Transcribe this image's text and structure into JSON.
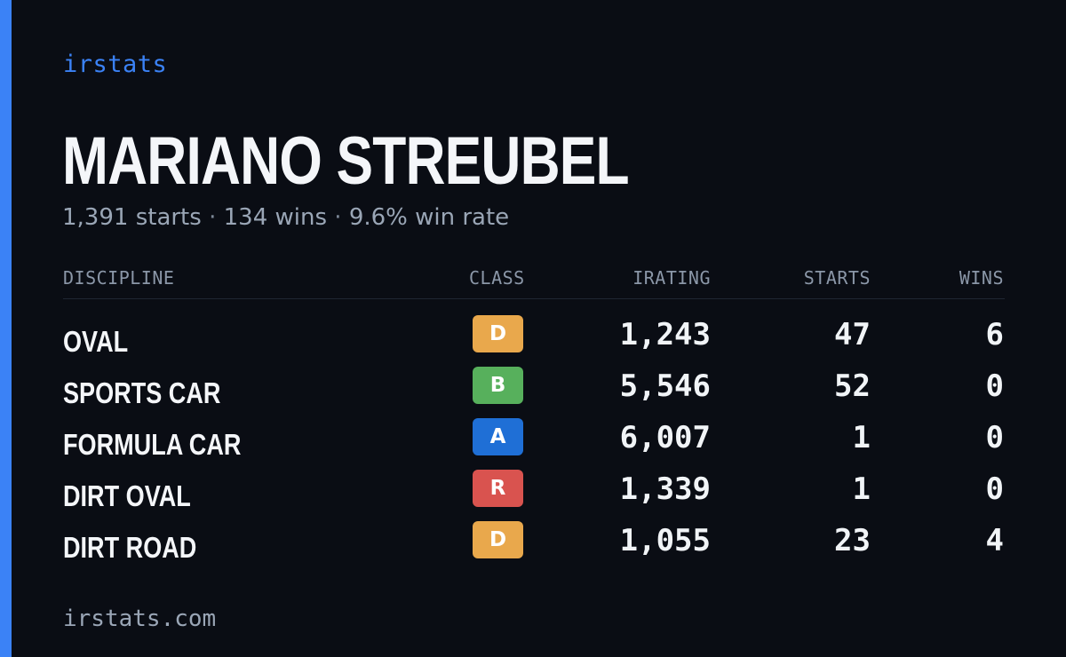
{
  "brand": {
    "name": "irstats",
    "footer_url": "irstats.com",
    "accent_color": "#3b82f6"
  },
  "profile": {
    "name": "MARIANO STREUBEL",
    "starts": "1,391 starts",
    "wins": "134 wins",
    "win_rate": "9.6% win rate",
    "separator": "·"
  },
  "table": {
    "headers": {
      "discipline": "DISCIPLINE",
      "class": "CLASS",
      "irating": "IRATING",
      "starts": "STARTS",
      "wins": "WINS"
    },
    "rows": [
      {
        "discipline": "OVAL",
        "class": "D",
        "class_color": "#e9a84c",
        "irating": "1,243",
        "starts": "47",
        "wins": "6"
      },
      {
        "discipline": "SPORTS CAR",
        "class": "B",
        "class_color": "#57b05c",
        "irating": "5,546",
        "starts": "52",
        "wins": "0"
      },
      {
        "discipline": "FORMULA CAR",
        "class": "A",
        "class_color": "#1f6fd6",
        "irating": "6,007",
        "starts": "1",
        "wins": "0"
      },
      {
        "discipline": "DIRT OVAL",
        "class": "R",
        "class_color": "#d9534f",
        "irating": "1,339",
        "starts": "1",
        "wins": "0"
      },
      {
        "discipline": "DIRT ROAD",
        "class": "D",
        "class_color": "#e9a84c",
        "irating": "1,055",
        "starts": "23",
        "wins": "4"
      }
    ]
  }
}
